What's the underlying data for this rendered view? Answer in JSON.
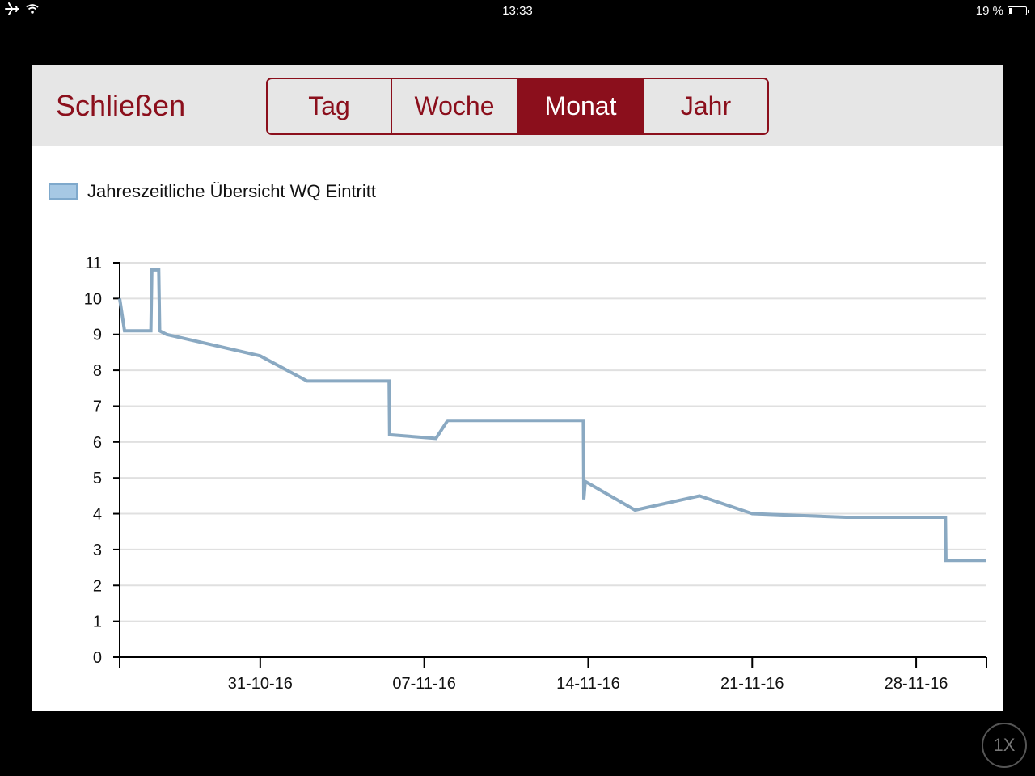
{
  "status_bar": {
    "time": "13:33",
    "battery": "19 %",
    "battery_level": 0.19,
    "icons": [
      "airplane-icon",
      "wifi-icon",
      "battery-icon"
    ]
  },
  "toolbar": {
    "close_label": "Schließen",
    "segments": [
      {
        "label": "Tag",
        "active": false
      },
      {
        "label": "Woche",
        "active": false
      },
      {
        "label": "Monat",
        "active": true
      },
      {
        "label": "Jahr",
        "active": false
      }
    ]
  },
  "colors": {
    "accent": "#8b0f1c",
    "series_line": "#8aa9c2",
    "legend_fill": "#a6c8e4",
    "grid": "#e0e0e0"
  },
  "chart_data": {
    "type": "line",
    "title": "",
    "xlabel": "",
    "ylabel": "",
    "ylim": [
      0,
      11
    ],
    "yticks": [
      "0",
      "1",
      "2",
      "3",
      "4",
      "5",
      "6",
      "7",
      "8",
      "9",
      "10",
      "11"
    ],
    "xticks": [
      "31-10-16",
      "07-11-16",
      "14-11-16",
      "21-11-16",
      "28-11-16"
    ],
    "xlim": [
      "2016-10-25",
      "2016-12-01"
    ],
    "grid": true,
    "legend_placement": "top-left",
    "series": [
      {
        "name": "Jahreszeitliche Übersicht WQ Eintritt",
        "points": [
          [
            "2016-10-25 00:00",
            10.0
          ],
          [
            "2016-10-25 05:00",
            9.1
          ],
          [
            "2016-10-26 08:00",
            9.1
          ],
          [
            "2016-10-26 09:00",
            10.8
          ],
          [
            "2016-10-26 16:00",
            10.8
          ],
          [
            "2016-10-26 17:00",
            9.1
          ],
          [
            "2016-10-27 00:00",
            9.0
          ],
          [
            "2016-10-31 00:00",
            8.4
          ],
          [
            "2016-11-02 00:00",
            7.7
          ],
          [
            "2016-11-05 12:00",
            7.7
          ],
          [
            "2016-11-05 12:30",
            6.2
          ],
          [
            "2016-11-07 12:00",
            6.1
          ],
          [
            "2016-11-08 00:00",
            6.6
          ],
          [
            "2016-11-13 19:00",
            6.6
          ],
          [
            "2016-11-13 19:30",
            4.4
          ],
          [
            "2016-11-13 21:00",
            4.9
          ],
          [
            "2016-11-16 00:00",
            4.1
          ],
          [
            "2016-11-18 18:00",
            4.5
          ],
          [
            "2016-11-21 00:00",
            4.0
          ],
          [
            "2016-11-25 00:00",
            3.9
          ],
          [
            "2016-11-29 06:00",
            3.9
          ],
          [
            "2016-11-29 06:30",
            2.7
          ],
          [
            "2016-12-01 00:00",
            2.7
          ]
        ]
      }
    ]
  },
  "zoom_badge": "1X"
}
